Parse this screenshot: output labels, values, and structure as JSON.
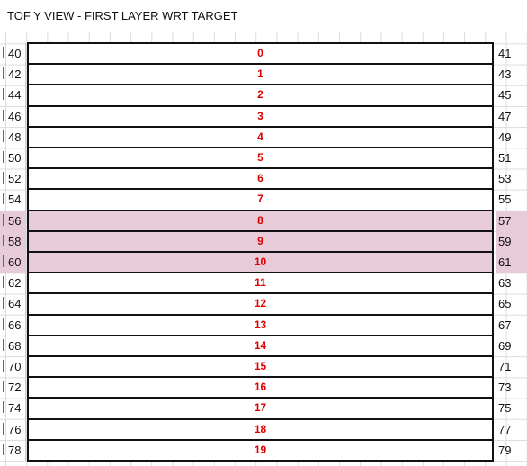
{
  "sheet": {
    "title": "TOF Y VIEW - FIRST LAYER WRT TARGET",
    "highlight_color": "#e8cbd8",
    "label_color": "#dd0000",
    "rows": [
      {
        "left": "40",
        "label": "0",
        "right": "41",
        "highlight": false
      },
      {
        "left": "42",
        "label": "1",
        "right": "43",
        "highlight": false
      },
      {
        "left": "44",
        "label": "2",
        "right": "45",
        "highlight": false
      },
      {
        "left": "46",
        "label": "3",
        "right": "47",
        "highlight": false
      },
      {
        "left": "48",
        "label": "4",
        "right": "49",
        "highlight": false
      },
      {
        "left": "50",
        "label": "5",
        "right": "51",
        "highlight": false
      },
      {
        "left": "52",
        "label": "6",
        "right": "53",
        "highlight": false
      },
      {
        "left": "54",
        "label": "7",
        "right": "55",
        "highlight": false
      },
      {
        "left": "56",
        "label": "8",
        "right": "57",
        "highlight": true
      },
      {
        "left": "58",
        "label": "9",
        "right": "59",
        "highlight": true
      },
      {
        "left": "60",
        "label": "10",
        "right": "61",
        "highlight": true
      },
      {
        "left": "62",
        "label": "11",
        "right": "63",
        "highlight": false
      },
      {
        "left": "64",
        "label": "12",
        "right": "65",
        "highlight": false
      },
      {
        "left": "66",
        "label": "13",
        "right": "67",
        "highlight": false
      },
      {
        "left": "68",
        "label": "14",
        "right": "69",
        "highlight": false
      },
      {
        "left": "70",
        "label": "15",
        "right": "71",
        "highlight": false
      },
      {
        "left": "72",
        "label": "16",
        "right": "73",
        "highlight": false
      },
      {
        "left": "74",
        "label": "17",
        "right": "75",
        "highlight": false
      },
      {
        "left": "76",
        "label": "18",
        "right": "77",
        "highlight": false
      },
      {
        "left": "78",
        "label": "19",
        "right": "79",
        "highlight": false
      }
    ]
  }
}
